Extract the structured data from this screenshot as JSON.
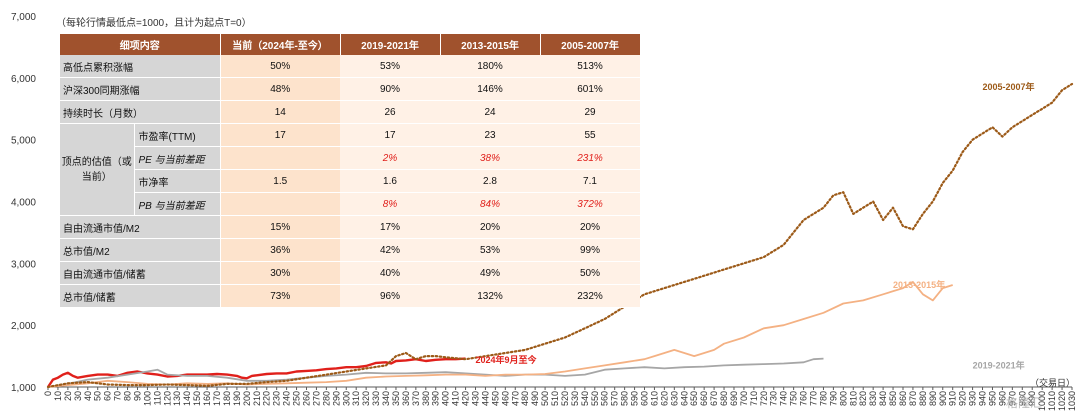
{
  "note": "（每轮行情最低点=1000，且计为起点T=0）",
  "x_unit": "（交易日）",
  "watermark": "格隆汇",
  "table": {
    "headers": [
      "细项内容",
      "当前（2024年-至今）",
      "2019-2021年",
      "2013-2015年",
      "2005-2007年"
    ],
    "group_label": "顶点的估值（或当前）",
    "rows": [
      {
        "label": "高低点累积涨幅",
        "values": [
          "50%",
          "53%",
          "180%",
          "513%"
        ]
      },
      {
        "label": "沪深300同期涨幅",
        "values": [
          "48%",
          "90%",
          "146%",
          "601%"
        ]
      },
      {
        "label": "持续时长（月数）",
        "values": [
          "14",
          "26",
          "24",
          "29"
        ]
      },
      {
        "label": "市盈率(TTM)",
        "values": [
          "17",
          "17",
          "23",
          "55"
        ]
      },
      {
        "label": "PE 与当前差距",
        "values": [
          "",
          "2%",
          "38%",
          "231%"
        ]
      },
      {
        "label": "市净率",
        "values": [
          "1.5",
          "1.6",
          "2.8",
          "7.1"
        ]
      },
      {
        "label": "PB 与当前差距",
        "values": [
          "",
          "8%",
          "84%",
          "372%"
        ]
      },
      {
        "label": "自由流通市值/M2",
        "values": [
          "15%",
          "17%",
          "20%",
          "20%"
        ]
      },
      {
        "label": "总市值/M2",
        "values": [
          "36%",
          "42%",
          "53%",
          "99%"
        ]
      },
      {
        "label": "自由流通市值/储蓄",
        "values": [
          "30%",
          "40%",
          "49%",
          "50%"
        ]
      },
      {
        "label": "总市值/储蓄",
        "values": [
          "73%",
          "96%",
          "132%",
          "232%"
        ]
      }
    ]
  },
  "chart_data": {
    "type": "line",
    "xlabel": "（交易日）",
    "ylabel": "",
    "xlim": [
      0,
      1030
    ],
    "ylim": [
      1000,
      7000
    ],
    "x_ticks": [
      0,
      10,
      20,
      30,
      40,
      50,
      60,
      70,
      80,
      90,
      100,
      110,
      120,
      130,
      140,
      150,
      160,
      170,
      180,
      190,
      200,
      210,
      220,
      230,
      240,
      250,
      260,
      270,
      280,
      290,
      300,
      310,
      320,
      330,
      340,
      350,
      360,
      370,
      380,
      390,
      400,
      410,
      420,
      430,
      440,
      450,
      460,
      470,
      480,
      490,
      500,
      510,
      520,
      530,
      540,
      550,
      560,
      570,
      580,
      590,
      600,
      610,
      620,
      630,
      640,
      650,
      660,
      670,
      680,
      690,
      700,
      710,
      720,
      730,
      740,
      750,
      760,
      770,
      780,
      790,
      800,
      810,
      820,
      830,
      840,
      850,
      860,
      870,
      880,
      890,
      900,
      910,
      920,
      930,
      940,
      950,
      960,
      970,
      980,
      990,
      1000,
      1010,
      1020,
      1030
    ],
    "y_ticks": [
      1000,
      2000,
      3000,
      4000,
      5000,
      6000,
      7000
    ],
    "y_tick_labels": [
      "1,000",
      "2,000",
      "3,000",
      "4,000",
      "5,000",
      "6,000",
      "7,000"
    ],
    "series": [
      {
        "name": "2024年9月至今",
        "color": "#e0201b",
        "style": "solid",
        "points": [
          [
            0,
            1000
          ],
          [
            5,
            1120
          ],
          [
            10,
            1150
          ],
          [
            15,
            1200
          ],
          [
            20,
            1230
          ],
          [
            25,
            1180
          ],
          [
            30,
            1150
          ],
          [
            40,
            1180
          ],
          [
            50,
            1200
          ],
          [
            60,
            1200
          ],
          [
            70,
            1180
          ],
          [
            80,
            1230
          ],
          [
            90,
            1250
          ],
          [
            100,
            1220
          ],
          [
            110,
            1200
          ],
          [
            120,
            1170
          ],
          [
            130,
            1180
          ],
          [
            140,
            1200
          ],
          [
            150,
            1200
          ],
          [
            160,
            1200
          ],
          [
            170,
            1210
          ],
          [
            180,
            1200
          ],
          [
            190,
            1180
          ],
          [
            195,
            1150
          ],
          [
            200,
            1140
          ],
          [
            205,
            1180
          ],
          [
            210,
            1190
          ],
          [
            220,
            1210
          ],
          [
            230,
            1220
          ],
          [
            240,
            1220
          ],
          [
            250,
            1250
          ],
          [
            260,
            1260
          ],
          [
            270,
            1270
          ],
          [
            280,
            1290
          ],
          [
            290,
            1300
          ],
          [
            300,
            1320
          ],
          [
            310,
            1320
          ],
          [
            320,
            1340
          ],
          [
            330,
            1390
          ],
          [
            340,
            1400
          ],
          [
            345,
            1380
          ],
          [
            350,
            1420
          ],
          [
            360,
            1430
          ],
          [
            370,
            1450
          ],
          [
            380,
            1420
          ],
          [
            390,
            1440
          ],
          [
            400,
            1450
          ],
          [
            410,
            1450
          ],
          [
            420,
            1460
          ]
        ]
      },
      {
        "name": "2019-2021年",
        "color": "#a6a6a6",
        "style": "solid",
        "points": [
          [
            0,
            1000
          ],
          [
            20,
            1050
          ],
          [
            40,
            1120
          ],
          [
            60,
            1150
          ],
          [
            80,
            1200
          ],
          [
            100,
            1250
          ],
          [
            110,
            1280
          ],
          [
            120,
            1200
          ],
          [
            140,
            1180
          ],
          [
            160,
            1180
          ],
          [
            180,
            1150
          ],
          [
            200,
            1100
          ],
          [
            220,
            1100
          ],
          [
            240,
            1120
          ],
          [
            260,
            1150
          ],
          [
            280,
            1180
          ],
          [
            300,
            1200
          ],
          [
            320,
            1230
          ],
          [
            340,
            1220
          ],
          [
            360,
            1220
          ],
          [
            380,
            1230
          ],
          [
            400,
            1240
          ],
          [
            420,
            1220
          ],
          [
            440,
            1200
          ],
          [
            460,
            1180
          ],
          [
            480,
            1200
          ],
          [
            500,
            1200
          ],
          [
            520,
            1180
          ],
          [
            540,
            1200
          ],
          [
            560,
            1280
          ],
          [
            580,
            1300
          ],
          [
            600,
            1320
          ],
          [
            620,
            1300
          ],
          [
            640,
            1320
          ],
          [
            660,
            1330
          ],
          [
            680,
            1350
          ],
          [
            700,
            1360
          ],
          [
            720,
            1370
          ],
          [
            740,
            1380
          ],
          [
            760,
            1400
          ],
          [
            770,
            1450
          ],
          [
            780,
            1460
          ]
        ]
      },
      {
        "name": "2013-2015年",
        "color": "#f4b183",
        "style": "solid",
        "points": [
          [
            0,
            1000
          ],
          [
            20,
            1030
          ],
          [
            40,
            1060
          ],
          [
            60,
            1100
          ],
          [
            80,
            1080
          ],
          [
            100,
            1050
          ],
          [
            120,
            1040
          ],
          [
            140,
            1060
          ],
          [
            160,
            1050
          ],
          [
            180,
            1060
          ],
          [
            200,
            1040
          ],
          [
            220,
            1050
          ],
          [
            240,
            1060
          ],
          [
            260,
            1070
          ],
          [
            280,
            1080
          ],
          [
            300,
            1100
          ],
          [
            320,
            1150
          ],
          [
            340,
            1170
          ],
          [
            360,
            1180
          ],
          [
            380,
            1190
          ],
          [
            400,
            1200
          ],
          [
            420,
            1200
          ],
          [
            440,
            1180
          ],
          [
            460,
            1200
          ],
          [
            480,
            1200
          ],
          [
            500,
            1210
          ],
          [
            520,
            1250
          ],
          [
            540,
            1300
          ],
          [
            560,
            1350
          ],
          [
            580,
            1400
          ],
          [
            600,
            1450
          ],
          [
            610,
            1500
          ],
          [
            620,
            1550
          ],
          [
            630,
            1600
          ],
          [
            640,
            1550
          ],
          [
            650,
            1500
          ],
          [
            660,
            1550
          ],
          [
            670,
            1600
          ],
          [
            680,
            1700
          ],
          [
            700,
            1800
          ],
          [
            720,
            1950
          ],
          [
            740,
            2000
          ],
          [
            760,
            2100
          ],
          [
            780,
            2200
          ],
          [
            800,
            2350
          ],
          [
            820,
            2400
          ],
          [
            840,
            2500
          ],
          [
            860,
            2600
          ],
          [
            870,
            2700
          ],
          [
            880,
            2500
          ],
          [
            890,
            2400
          ],
          [
            900,
            2600
          ],
          [
            910,
            2650
          ]
        ]
      },
      {
        "name": "2005-2007年",
        "color": "#9c5a18",
        "style": "dotted",
        "points": [
          [
            0,
            1000
          ],
          [
            20,
            1060
          ],
          [
            40,
            1080
          ],
          [
            60,
            1040
          ],
          [
            80,
            1030
          ],
          [
            100,
            1030
          ],
          [
            120,
            1040
          ],
          [
            140,
            1030
          ],
          [
            160,
            1020
          ],
          [
            180,
            1050
          ],
          [
            200,
            1050
          ],
          [
            220,
            1080
          ],
          [
            240,
            1100
          ],
          [
            260,
            1150
          ],
          [
            280,
            1200
          ],
          [
            300,
            1250
          ],
          [
            320,
            1300
          ],
          [
            340,
            1350
          ],
          [
            350,
            1500
          ],
          [
            360,
            1550
          ],
          [
            370,
            1450
          ],
          [
            380,
            1500
          ],
          [
            390,
            1500
          ],
          [
            400,
            1480
          ],
          [
            420,
            1450
          ],
          [
            440,
            1500
          ],
          [
            460,
            1550
          ],
          [
            480,
            1600
          ],
          [
            500,
            1700
          ],
          [
            520,
            1800
          ],
          [
            540,
            1950
          ],
          [
            560,
            2100
          ],
          [
            580,
            2300
          ],
          [
            600,
            2500
          ],
          [
            620,
            2600
          ],
          [
            640,
            2700
          ],
          [
            660,
            2800
          ],
          [
            680,
            2900
          ],
          [
            700,
            3000
          ],
          [
            720,
            3100
          ],
          [
            740,
            3300
          ],
          [
            750,
            3500
          ],
          [
            760,
            3700
          ],
          [
            770,
            3800
          ],
          [
            780,
            3900
          ],
          [
            790,
            4100
          ],
          [
            800,
            4150
          ],
          [
            810,
            3800
          ],
          [
            820,
            3900
          ],
          [
            830,
            4000
          ],
          [
            840,
            3700
          ],
          [
            850,
            3900
          ],
          [
            860,
            3600
          ],
          [
            870,
            3550
          ],
          [
            880,
            3800
          ],
          [
            890,
            4000
          ],
          [
            900,
            4300
          ],
          [
            910,
            4500
          ],
          [
            920,
            4800
          ],
          [
            930,
            5000
          ],
          [
            940,
            5100
          ],
          [
            950,
            5200
          ],
          [
            960,
            5050
          ],
          [
            970,
            5200
          ],
          [
            980,
            5300
          ],
          [
            990,
            5400
          ],
          [
            1000,
            5500
          ],
          [
            1010,
            5600
          ],
          [
            1020,
            5800
          ],
          [
            1030,
            5900
          ]
        ]
      }
    ],
    "series_labels": [
      {
        "text": "2024年9月至今",
        "color": "#e0201b",
        "x": 430,
        "y": 1440
      },
      {
        "text": "2019-2021年",
        "color": "#a6a6a6",
        "x": 930,
        "y": 1350
      },
      {
        "text": "2013-2015年",
        "color": "#f4b183",
        "x": 850,
        "y": 2650
      },
      {
        "text": "2005-2007年",
        "color": "#9c5a18",
        "x": 940,
        "y": 5850
      }
    ]
  }
}
